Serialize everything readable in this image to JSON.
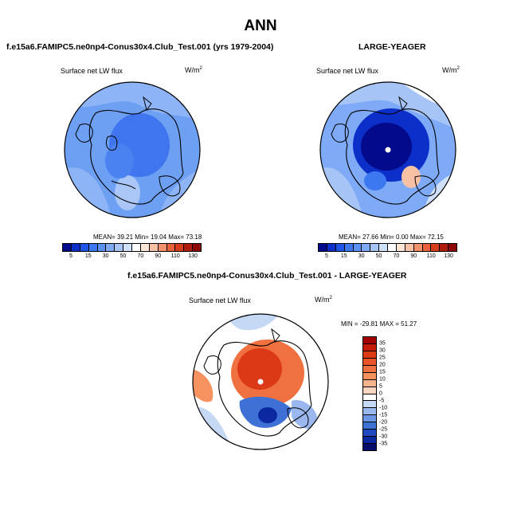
{
  "title": "ANN",
  "chart_data": [
    {
      "type": "heatmap",
      "projection": "polar-stereographic (Arctic)",
      "title": "f.e15a6.FAMIPC5.ne0np4-Conus30x4.Club_Test.001 (yrs 1979-2004)",
      "field": "Surface net LW flux",
      "units": "W/m",
      "units_exp": "2",
      "stats": "MEAN=  39.21  Min=  19.04  Max=  73.18",
      "mean": 39.21,
      "min": 19.04,
      "max": 73.18,
      "colorbar": {
        "labels": [
          "5",
          "15",
          "30",
          "50",
          "70",
          "90",
          "110",
          "130"
        ],
        "levels": [
          0,
          5,
          10,
          15,
          20,
          30,
          40,
          50,
          60,
          70,
          80,
          90,
          100,
          110,
          120,
          130
        ],
        "colors": [
          "#040a8c",
          "#0b2fc8",
          "#1e55e6",
          "#3c78f0",
          "#5a92f5",
          "#7eaaf7",
          "#a6c4f5",
          "#cfe0fb",
          "#ffffff",
          "#fde6d8",
          "#f8c0a4",
          "#f2926c",
          "#e8623c",
          "#d43d1c",
          "#b01c0c",
          "#8c0606"
        ]
      }
    },
    {
      "type": "heatmap",
      "projection": "polar-stereographic (Arctic)",
      "title": "LARGE-YEAGER",
      "field": "Surface net LW flux",
      "units": "W/m",
      "units_exp": "2",
      "stats": "MEAN=  27.66  Min=   0.00  Max=  72.15",
      "mean": 27.66,
      "min": 0.0,
      "max": 72.15,
      "colorbar": {
        "labels": [
          "5",
          "15",
          "30",
          "50",
          "70",
          "90",
          "110",
          "130"
        ],
        "levels": [
          0,
          5,
          10,
          15,
          20,
          30,
          40,
          50,
          60,
          70,
          80,
          90,
          100,
          110,
          120,
          130
        ],
        "colors": [
          "#040a8c",
          "#0b2fc8",
          "#1e55e6",
          "#3c78f0",
          "#5a92f5",
          "#7eaaf7",
          "#a6c4f5",
          "#cfe0fb",
          "#ffffff",
          "#fde6d8",
          "#f8c0a4",
          "#f2926c",
          "#e8623c",
          "#d43d1c",
          "#b01c0c",
          "#8c0606"
        ]
      }
    },
    {
      "type": "heatmap",
      "projection": "polar-stereographic (Arctic)",
      "title": "f.e15a6.FAMIPC5.ne0np4-Conus30x4.Club_Test.001 - LARGE-YEAGER",
      "field": "Surface net LW flux",
      "units": "W/m",
      "units_exp": "2",
      "stats": "MIN = -29.81  MAX =  51.27",
      "min": -29.81,
      "max": 51.27,
      "colorbar": {
        "labels": [
          "35",
          "30",
          "25",
          "20",
          "15",
          "10",
          "5",
          "0",
          "-5",
          "-10",
          "-15",
          "-20",
          "-25",
          "-30",
          "-35"
        ],
        "colors": [
          "#a40000",
          "#c61a08",
          "#dc3a16",
          "#e85428",
          "#f07040",
          "#f5925f",
          "#f8b48c",
          "#fcd6c0",
          "#ffffff",
          "#c6d9f4",
          "#9ab8ee",
          "#6b96e4",
          "#3f70d6",
          "#2048c0",
          "#0b28a0",
          "#06106c"
        ]
      }
    }
  ]
}
